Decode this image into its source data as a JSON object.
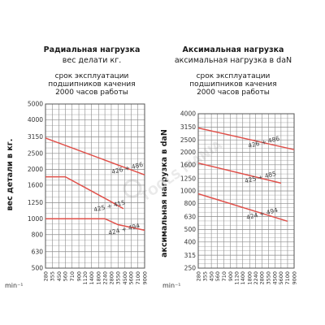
{
  "charts": [
    {
      "title": "Радиальная нагрузка",
      "subtitle": "вес делати кг.",
      "note": [
        "срок эксплуатации",
        "подшипников качения",
        "2000 часов работы"
      ],
      "ylabel": "вес детали в кг.",
      "xunit": "min⁻¹"
    },
    {
      "title": "Аксимальная нагрузка",
      "subtitle": "аксимальная нагрузка в daN",
      "note": [
        "срок эксплуатации",
        "подшипников качения",
        "2000 часов работы"
      ],
      "ylabel": "аксимальная нагрузка в daN",
      "xunit": "min⁻¹"
    }
  ],
  "watermark": "TOOLS MANIA",
  "colors": {
    "curve": "#e0504a",
    "grid": "#8a8a8a",
    "frame": "#555555"
  },
  "chart_data": [
    {
      "type": "line",
      "title": "Радиальная нагрузка",
      "xlabel": "min⁻¹",
      "ylabel": "вес детали в кг.",
      "x_ticks": [
        "280",
        "355",
        "450",
        "560",
        "710",
        "900",
        "1120",
        "1400",
        "1800",
        "2240",
        "2800",
        "3550",
        "4500",
        "5600",
        "7100",
        "9000"
      ],
      "y_ticks": [
        "5000",
        "4000",
        "3150",
        "2500",
        "2000",
        "1600",
        "1250",
        "1000",
        "800",
        "630",
        "500"
      ],
      "y_scale": "log",
      "x_scale": "log",
      "grid": true,
      "series": [
        {
          "name": "426 + 486",
          "x": [
            280,
            9000
          ],
          "y": [
            3100,
            1850
          ]
        },
        {
          "name": "425 + 415",
          "x": [
            280,
            560,
            2500,
            4300
          ],
          "y": [
            1800,
            1800,
            1300,
            1150
          ]
        },
        {
          "name": "424 + 494",
          "x": [
            280,
            1120,
            2240,
            3550,
            9000
          ],
          "y": [
            1000,
            1000,
            1000,
            920,
            850
          ]
        }
      ]
    },
    {
      "type": "line",
      "title": "Аксимальная нагрузка",
      "xlabel": "min⁻¹",
      "ylabel": "аксимальная нагрузка в daN",
      "x_ticks": [
        "280",
        "355",
        "450",
        "560",
        "710",
        "900",
        "1120",
        "1400",
        "1800",
        "2240",
        "2800",
        "3550",
        "4500",
        "5600",
        "7100",
        "9000"
      ],
      "y_ticks": [
        "4000",
        "3150",
        "2500",
        "2000",
        "1600",
        "1250",
        "1000",
        "800",
        "630",
        "500",
        "400",
        "315",
        "250"
      ],
      "y_scale": "log",
      "x_scale": "log",
      "grid": true,
      "series": [
        {
          "name": "426 + 486",
          "x": [
            280,
            9000
          ],
          "y": [
            3100,
            2100
          ]
        },
        {
          "name": "425 + 485",
          "x": [
            280,
            5600
          ],
          "y": [
            1650,
            1150
          ]
        },
        {
          "name": "424 + 494",
          "x": [
            280,
            7100
          ],
          "y": [
            950,
            580
          ]
        }
      ]
    }
  ]
}
